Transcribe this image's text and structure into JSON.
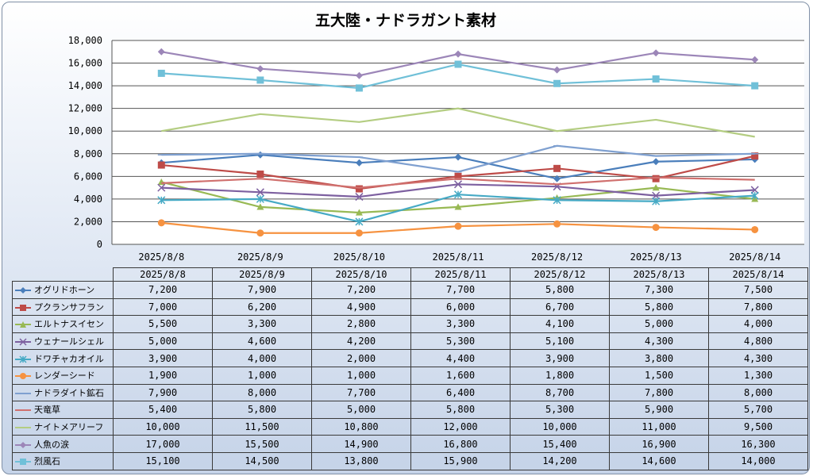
{
  "chart_data": {
    "type": "line",
    "title": "五大陸・ナドラガント素材",
    "categories": [
      "2025/8/8",
      "2025/8/9",
      "2025/8/10",
      "2025/8/11",
      "2025/8/12",
      "2025/8/13",
      "2025/8/14"
    ],
    "ylim": [
      0,
      18000
    ],
    "yticks": [
      "0",
      "2,000",
      "4,000",
      "6,000",
      "8,000",
      "10,000",
      "12,000",
      "14,000",
      "16,000",
      "18,000"
    ],
    "grid": true,
    "legend": "data-table",
    "series": [
      {
        "name": "オグリドホーン",
        "color": "#4a7ebb",
        "marker": "diamond",
        "values": [
          7200,
          7900,
          7200,
          7700,
          5800,
          7300,
          7500
        ]
      },
      {
        "name": "プクランサフラン",
        "color": "#be4b48",
        "marker": "square",
        "values": [
          7000,
          6200,
          4900,
          6000,
          6700,
          5800,
          7800
        ]
      },
      {
        "name": "エルトナスイセン",
        "color": "#98b954",
        "marker": "triangle",
        "values": [
          5500,
          3300,
          2800,
          3300,
          4100,
          5000,
          4000
        ]
      },
      {
        "name": "ウェナールシェル",
        "color": "#7d60a0",
        "marker": "x",
        "values": [
          5000,
          4600,
          4200,
          5300,
          5100,
          4300,
          4800
        ]
      },
      {
        "name": "ドワチャカオイル",
        "color": "#46aac5",
        "marker": "star",
        "values": [
          3900,
          4000,
          2000,
          4400,
          3900,
          3800,
          4300
        ]
      },
      {
        "name": "レンダーシード",
        "color": "#f69240",
        "marker": "circle",
        "values": [
          1900,
          1000,
          1000,
          1600,
          1800,
          1500,
          1300
        ]
      },
      {
        "name": "ナドラダイト鉱石",
        "color": "#7fa0d0",
        "marker": "plus",
        "values": [
          7900,
          8000,
          7700,
          6400,
          8700,
          7800,
          8000
        ]
      },
      {
        "name": "天竜草",
        "color": "#d0706e",
        "marker": "dash",
        "values": [
          5400,
          5800,
          5000,
          5800,
          5300,
          5900,
          5700
        ]
      },
      {
        "name": "ナイトメアリーフ",
        "color": "#b4cd82",
        "marker": "dash",
        "values": [
          10000,
          11500,
          10800,
          12000,
          10000,
          11000,
          9500
        ]
      },
      {
        "name": "人魚の涙",
        "color": "#9c86b8",
        "marker": "diamond",
        "values": [
          17000,
          15500,
          14900,
          16800,
          15400,
          16900,
          16300
        ]
      },
      {
        "name": "烈風石",
        "color": "#70c0d8",
        "marker": "square",
        "values": [
          15100,
          14500,
          13800,
          15900,
          14200,
          14600,
          14000
        ]
      }
    ],
    "table_values": [
      [
        "7,200",
        "7,900",
        "7,200",
        "7,700",
        "5,800",
        "7,300",
        "7,500"
      ],
      [
        "7,000",
        "6,200",
        "4,900",
        "6,000",
        "6,700",
        "5,800",
        "7,800"
      ],
      [
        "5,500",
        "3,300",
        "2,800",
        "3,300",
        "4,100",
        "5,000",
        "4,000"
      ],
      [
        "5,000",
        "4,600",
        "4,200",
        "5,300",
        "5,100",
        "4,300",
        "4,800"
      ],
      [
        "3,900",
        "4,000",
        "2,000",
        "4,400",
        "3,900",
        "3,800",
        "4,300"
      ],
      [
        "1,900",
        "1,000",
        "1,000",
        "1,600",
        "1,800",
        "1,500",
        "1,300"
      ],
      [
        "7,900",
        "8,000",
        "7,700",
        "6,400",
        "8,700",
        "7,800",
        "8,000"
      ],
      [
        "5,400",
        "5,800",
        "5,000",
        "5,800",
        "5,300",
        "5,900",
        "5,700"
      ],
      [
        "10,000",
        "11,500",
        "10,800",
        "12,000",
        "10,000",
        "11,000",
        "9,500"
      ],
      [
        "17,000",
        "15,500",
        "14,900",
        "16,800",
        "15,400",
        "16,900",
        "16,300"
      ],
      [
        "15,100",
        "14,500",
        "13,800",
        "15,900",
        "14,200",
        "14,600",
        "14,000"
      ]
    ]
  }
}
